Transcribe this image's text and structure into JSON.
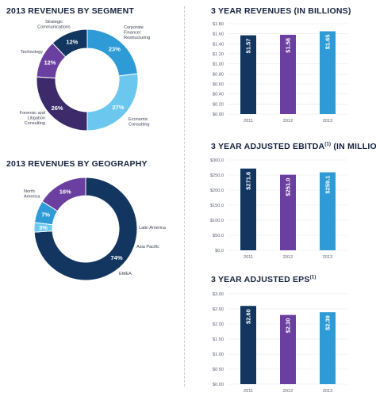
{
  "chart_data": [
    {
      "type": "pie",
      "title": "2013 REVENUES BY SEGMENT",
      "donut": true,
      "categories": [
        "Corporate Finance/ Restructuring",
        "Economic Consulting",
        "Forensic and Litigation Consulting",
        "Technology",
        "Strategic Communications"
      ],
      "values": [
        23,
        27,
        26,
        12,
        12
      ],
      "value_labels": [
        "23%",
        "27%",
        "26%",
        "12%",
        "12%"
      ],
      "colors": [
        "#2e9bd6",
        "#6cc7ee",
        "#3c2a6b",
        "#6b3fa0",
        "#12365f"
      ]
    },
    {
      "type": "pie",
      "title": "2013 REVENUES BY GEOGRAPHY",
      "donut": true,
      "categories": [
        "North America",
        "Latin America",
        "Asia Pacific",
        "EMEA"
      ],
      "values": [
        74,
        3,
        7,
        16
      ],
      "value_labels": [
        "74%",
        "3%",
        "7%",
        "16%"
      ],
      "colors": [
        "#12365f",
        "#6cc7ee",
        "#2e9bd6",
        "#6b3fa0"
      ]
    },
    {
      "type": "bar",
      "title": "3 YEAR REVENUES (IN BILLIONS)",
      "categories": [
        "2011",
        "2012",
        "2013"
      ],
      "values": [
        1.57,
        1.58,
        1.65
      ],
      "value_labels": [
        "$1.57",
        "$1.58",
        "$1.65"
      ],
      "ylim": [
        0,
        1.8
      ],
      "yticks": [
        "$0.00",
        "$0.20",
        "$0.40",
        "$0.60",
        "$0.80",
        "$1.00",
        "$1.20",
        "$1.40",
        "$1.60",
        "$1.80"
      ],
      "colors": [
        "#12365f",
        "#6b3fa0",
        "#2e9bd6"
      ]
    },
    {
      "type": "bar",
      "title": "3 YEAR ADJUSTED EBITDA",
      "title_sup": "(1)",
      "title_suffix": " (IN MILLIONS)",
      "categories": [
        "2011",
        "2012",
        "2013"
      ],
      "values": [
        271.6,
        251.0,
        259.1
      ],
      "value_labels": [
        "$271.6",
        "$251.0",
        "$259.1"
      ],
      "ylim": [
        0,
        300
      ],
      "yticks": [
        "$0.0",
        "$50.0",
        "$100.0",
        "$150.0",
        "$200.0",
        "$250.0",
        "$300.0"
      ],
      "colors": [
        "#12365f",
        "#6b3fa0",
        "#2e9bd6"
      ]
    },
    {
      "type": "bar",
      "title": "3 YEAR ADJUSTED EPS",
      "title_sup": "(1)",
      "categories": [
        "2011",
        "2012",
        "2013"
      ],
      "values": [
        2.6,
        2.3,
        2.39
      ],
      "value_labels": [
        "$2.60",
        "$2.30",
        "$2.39"
      ],
      "ylim": [
        0,
        3.0
      ],
      "yticks": [
        "$0.00",
        "$0.50",
        "$1.00",
        "$1.50",
        "$2.00",
        "$2.50",
        "$3.00"
      ],
      "colors": [
        "#12365f",
        "#6b3fa0",
        "#2e9bd6"
      ]
    }
  ]
}
